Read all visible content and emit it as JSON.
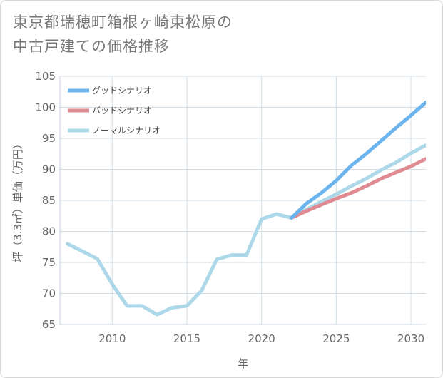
{
  "title": {
    "line1": "東京都瑞穂町箱根ヶ崎東松原の",
    "line2": "中古戸建ての価格推移"
  },
  "chart_data": {
    "type": "line",
    "xlabel": "年",
    "ylabel": "坪（3.3㎡）単価（万円）",
    "xlim": [
      2006.5,
      2031
    ],
    "ylim": [
      65,
      105
    ],
    "x_ticks": [
      2010,
      2015,
      2020,
      2025,
      2030
    ],
    "y_ticks": [
      65,
      70,
      75,
      80,
      85,
      90,
      95,
      100,
      105
    ],
    "grid": true,
    "legend_position": "top-left",
    "series": [
      {
        "name": "グッドシナリオ",
        "color": "#6cb4ee",
        "x": [
          2022,
          2023,
          2024,
          2025,
          2026,
          2027,
          2028,
          2029,
          2030,
          2031
        ],
        "y": [
          82.2,
          84.5,
          86.2,
          88.2,
          90.6,
          92.5,
          94.6,
          96.7,
          98.7,
          100.8
        ]
      },
      {
        "name": "バッドシナリオ",
        "color": "#e08a92",
        "x": [
          2022,
          2023,
          2024,
          2025,
          2026,
          2027,
          2028,
          2029,
          2030,
          2031
        ],
        "y": [
          82.2,
          83.3,
          84.3,
          85.3,
          86.2,
          87.3,
          88.5,
          89.5,
          90.5,
          91.7
        ]
      },
      {
        "name": "ノーマルシナリオ",
        "color": "#add8ea",
        "x": [
          2007,
          2008,
          2009,
          2010,
          2011,
          2012,
          2013,
          2014,
          2015,
          2016,
          2017,
          2018,
          2019,
          2020,
          2021,
          2022,
          2023,
          2024,
          2025,
          2026,
          2027,
          2028,
          2029,
          2030,
          2031
        ],
        "y": [
          78.0,
          76.8,
          75.6,
          71.5,
          68.0,
          68.0,
          66.6,
          67.7,
          68.0,
          70.5,
          75.5,
          76.2,
          76.2,
          82.0,
          82.8,
          82.2,
          83.5,
          84.8,
          86.0,
          87.3,
          88.5,
          89.9,
          91.1,
          92.6,
          93.9
        ]
      }
    ]
  }
}
